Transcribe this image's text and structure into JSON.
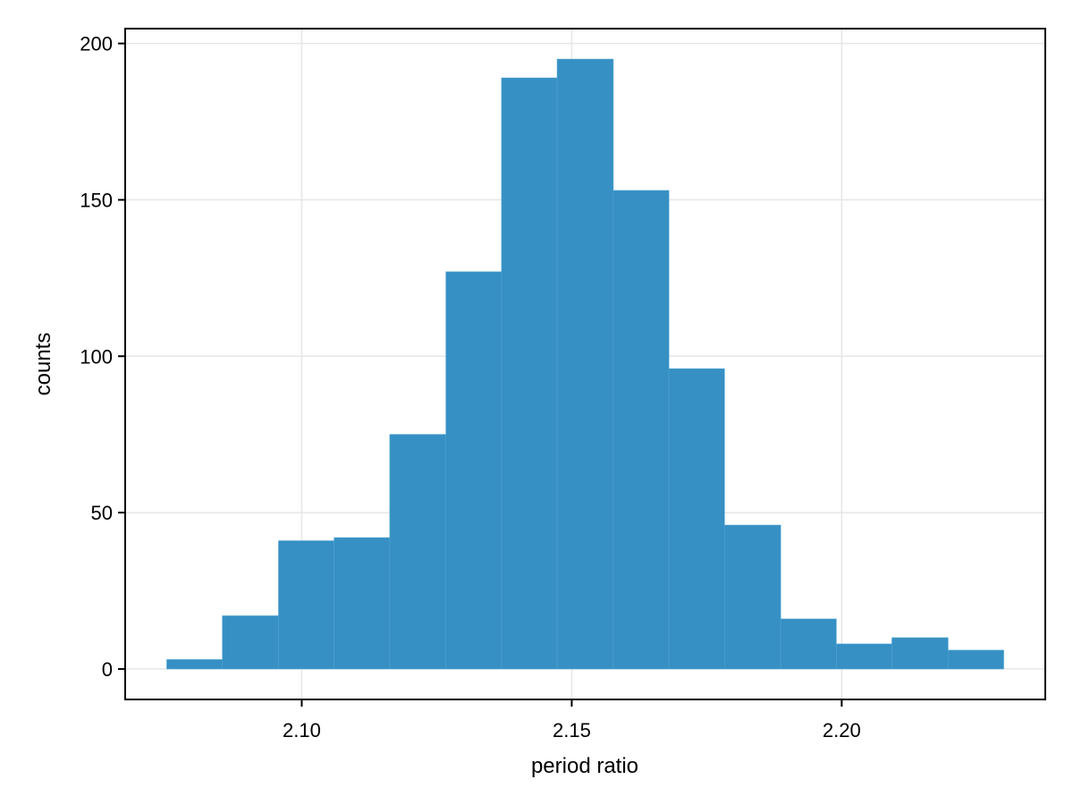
{
  "chart_data": {
    "type": "bar",
    "bins": [
      {
        "x0": 2.075,
        "x1": 2.0853,
        "value": 3
      },
      {
        "x0": 2.0853,
        "x1": 2.0957,
        "value": 17
      },
      {
        "x0": 2.0957,
        "x1": 2.106,
        "value": 41
      },
      {
        "x0": 2.106,
        "x1": 2.1163,
        "value": 42
      },
      {
        "x0": 2.1163,
        "x1": 2.1267,
        "value": 75
      },
      {
        "x0": 2.1267,
        "x1": 2.137,
        "value": 127
      },
      {
        "x0": 2.137,
        "x1": 2.1473,
        "value": 189
      },
      {
        "x0": 2.1473,
        "x1": 2.1577,
        "value": 195
      },
      {
        "x0": 2.1577,
        "x1": 2.168,
        "value": 153
      },
      {
        "x0": 2.168,
        "x1": 2.1783,
        "value": 96
      },
      {
        "x0": 2.1783,
        "x1": 2.1887,
        "value": 46
      },
      {
        "x0": 2.1887,
        "x1": 2.199,
        "value": 16
      },
      {
        "x0": 2.199,
        "x1": 2.2093,
        "value": 8
      },
      {
        "x0": 2.2093,
        "x1": 2.2197,
        "value": 10
      },
      {
        "x0": 2.2197,
        "x1": 2.23,
        "value": 6
      }
    ],
    "xlabel": "period ratio",
    "ylabel": "counts",
    "xlim": [
      2.0673,
      2.2377
    ],
    "ylim": [
      -9.75,
      204.75
    ],
    "xticks": [
      2.1,
      2.15,
      2.2
    ],
    "xtick_labels": [
      "2.10",
      "2.15",
      "2.20"
    ],
    "yticks": [
      0,
      50,
      100,
      150,
      200
    ],
    "ytick_labels": [
      "0",
      "50",
      "100",
      "150",
      "200"
    ],
    "grid": true,
    "bar_color": "#3690c3"
  }
}
